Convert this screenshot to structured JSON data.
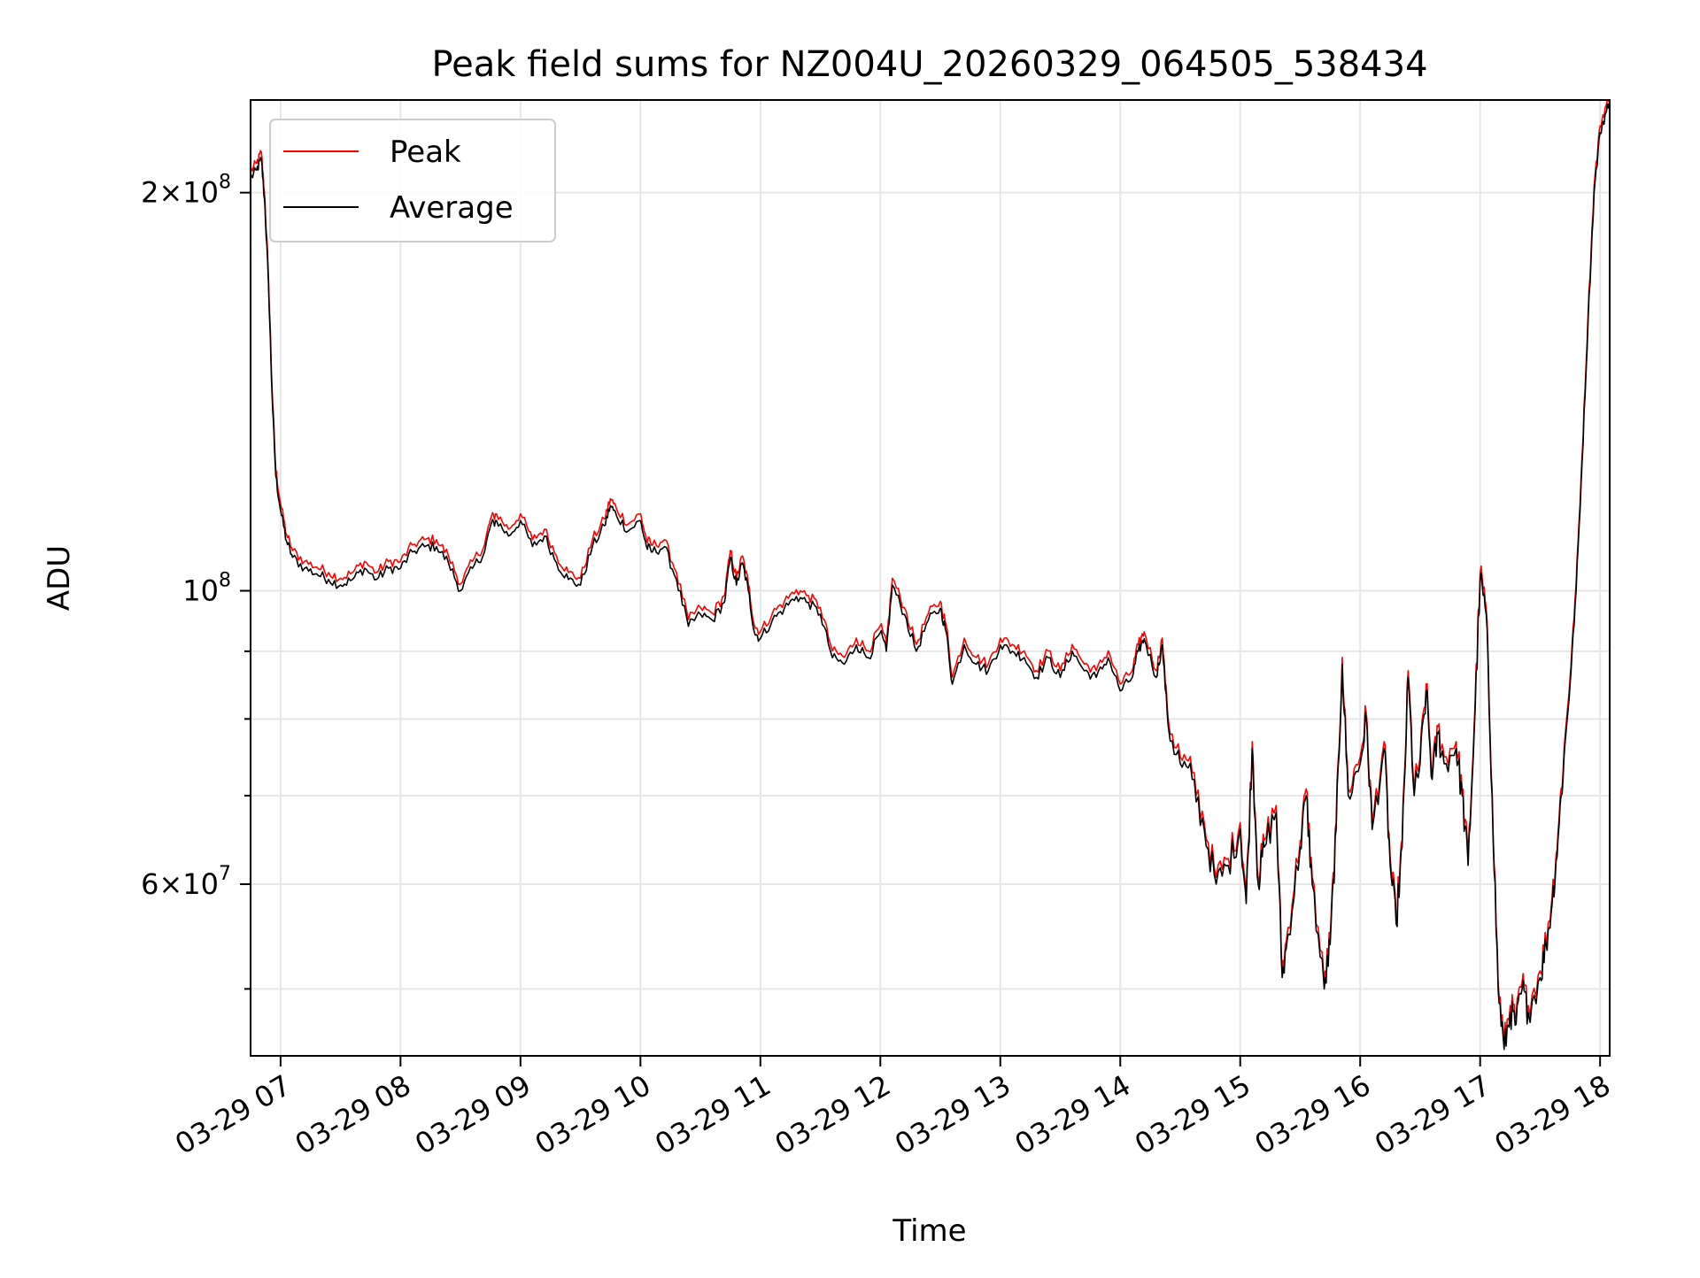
{
  "chart_data": {
    "type": "line",
    "title": "Peak field sums for NZ004U_20260329_064505_538434",
    "xlabel": "Time",
    "ylabel": "ADU",
    "y_scale": "log",
    "ylim": [
      44500000,
      235000000
    ],
    "xlim_hours": [
      6.75,
      18.08
    ],
    "x_tick_hours": [
      7,
      8,
      9,
      10,
      11,
      12,
      13,
      14,
      15,
      16,
      17,
      18
    ],
    "x_tick_labels": [
      "03-29 07",
      "03-29 08",
      "03-29 09",
      "03-29 10",
      "03-29 11",
      "03-29 12",
      "03-29 13",
      "03-29 14",
      "03-29 15",
      "03-29 16",
      "03-29 17",
      "03-29 18"
    ],
    "y_major_ticks": [
      {
        "value": 200000000,
        "mantissa": "2",
        "exponent": "8"
      },
      {
        "value": 100000000,
        "mantissa": "",
        "exponent": "8"
      },
      {
        "value": 60000000,
        "mantissa": "6",
        "exponent": "7"
      }
    ],
    "y_minor_ticks": [
      70000000,
      80000000,
      90000000,
      50000000
    ],
    "grid": true,
    "legend_position": "upper-left",
    "series": [
      {
        "name": "Peak",
        "color": "#ff0000",
        "offset_factor": 1.012
      },
      {
        "name": "Average",
        "color": "#000000",
        "offset_factor": 1.0
      }
    ],
    "keypoints": [
      [
        6.75,
        205000000
      ],
      [
        6.8,
        208000000
      ],
      [
        6.84,
        212000000
      ],
      [
        6.87,
        195000000
      ],
      [
        6.9,
        170000000
      ],
      [
        6.93,
        140000000
      ],
      [
        6.96,
        122000000
      ],
      [
        7.0,
        115000000
      ],
      [
        7.05,
        109000000
      ],
      [
        7.1,
        106000000
      ],
      [
        7.2,
        104000000
      ],
      [
        7.3,
        103000000
      ],
      [
        7.4,
        102000000
      ],
      [
        7.5,
        101000000
      ],
      [
        7.6,
        102000000
      ],
      [
        7.7,
        104000000
      ],
      [
        7.8,
        102000000
      ],
      [
        7.9,
        104000000
      ],
      [
        8.0,
        104000000
      ],
      [
        8.1,
        107000000
      ],
      [
        8.2,
        108000000
      ],
      [
        8.3,
        108000000
      ],
      [
        8.4,
        105000000
      ],
      [
        8.5,
        100000000
      ],
      [
        8.6,
        104000000
      ],
      [
        8.7,
        107000000
      ],
      [
        8.75,
        112000000
      ],
      [
        8.8,
        113000000
      ],
      [
        8.9,
        110000000
      ],
      [
        9.0,
        113000000
      ],
      [
        9.1,
        108000000
      ],
      [
        9.2,
        110000000
      ],
      [
        9.3,
        105000000
      ],
      [
        9.4,
        102000000
      ],
      [
        9.5,
        101000000
      ],
      [
        9.6,
        108000000
      ],
      [
        9.7,
        112000000
      ],
      [
        9.75,
        116000000
      ],
      [
        9.8,
        114000000
      ],
      [
        9.9,
        111000000
      ],
      [
        10.0,
        113000000
      ],
      [
        10.05,
        108000000
      ],
      [
        10.1,
        107000000
      ],
      [
        10.2,
        108000000
      ],
      [
        10.3,
        102000000
      ],
      [
        10.4,
        94000000
      ],
      [
        10.5,
        96000000
      ],
      [
        10.6,
        95000000
      ],
      [
        10.7,
        98000000
      ],
      [
        10.75,
        106000000
      ],
      [
        10.8,
        101000000
      ],
      [
        10.85,
        105000000
      ],
      [
        10.9,
        100000000
      ],
      [
        10.95,
        93000000
      ],
      [
        11.0,
        92000000
      ],
      [
        11.1,
        95000000
      ],
      [
        11.2,
        97000000
      ],
      [
        11.3,
        99000000
      ],
      [
        11.4,
        98000000
      ],
      [
        11.5,
        96000000
      ],
      [
        11.6,
        89000000
      ],
      [
        11.7,
        88000000
      ],
      [
        11.8,
        91000000
      ],
      [
        11.9,
        89000000
      ],
      [
        12.0,
        93000000
      ],
      [
        12.05,
        90000000
      ],
      [
        12.1,
        101000000
      ],
      [
        12.2,
        96000000
      ],
      [
        12.3,
        90000000
      ],
      [
        12.4,
        95000000
      ],
      [
        12.5,
        97000000
      ],
      [
        12.55,
        93000000
      ],
      [
        12.6,
        85000000
      ],
      [
        12.7,
        91000000
      ],
      [
        12.8,
        88000000
      ],
      [
        12.9,
        87000000
      ],
      [
        13.0,
        91000000
      ],
      [
        13.1,
        90000000
      ],
      [
        13.2,
        89000000
      ],
      [
        13.3,
        86000000
      ],
      [
        13.4,
        89000000
      ],
      [
        13.5,
        86000000
      ],
      [
        13.6,
        90000000
      ],
      [
        13.7,
        87000000
      ],
      [
        13.8,
        86000000
      ],
      [
        13.9,
        89000000
      ],
      [
        14.0,
        84000000
      ],
      [
        14.1,
        86000000
      ],
      [
        14.15,
        90000000
      ],
      [
        14.2,
        92000000
      ],
      [
        14.3,
        86000000
      ],
      [
        14.35,
        91000000
      ],
      [
        14.4,
        79000000
      ],
      [
        14.5,
        74000000
      ],
      [
        14.6,
        72000000
      ],
      [
        14.7,
        66000000
      ],
      [
        14.8,
        60000000
      ],
      [
        14.9,
        62000000
      ],
      [
        15.0,
        66000000
      ],
      [
        15.05,
        58000000
      ],
      [
        15.1,
        76000000
      ],
      [
        15.15,
        60000000
      ],
      [
        15.2,
        64000000
      ],
      [
        15.3,
        68000000
      ],
      [
        15.35,
        51000000
      ],
      [
        15.4,
        55000000
      ],
      [
        15.5,
        64000000
      ],
      [
        15.55,
        70000000
      ],
      [
        15.6,
        60000000
      ],
      [
        15.7,
        50000000
      ],
      [
        15.75,
        54000000
      ],
      [
        15.8,
        66000000
      ],
      [
        15.85,
        88000000
      ],
      [
        15.9,
        70000000
      ],
      [
        16.0,
        74000000
      ],
      [
        16.05,
        80000000
      ],
      [
        16.1,
        66000000
      ],
      [
        16.2,
        76000000
      ],
      [
        16.25,
        62000000
      ],
      [
        16.3,
        56000000
      ],
      [
        16.35,
        64000000
      ],
      [
        16.4,
        86000000
      ],
      [
        16.45,
        70000000
      ],
      [
        16.5,
        74000000
      ],
      [
        16.55,
        84000000
      ],
      [
        16.6,
        72000000
      ],
      [
        16.65,
        78000000
      ],
      [
        16.7,
        74000000
      ],
      [
        16.8,
        76000000
      ],
      [
        16.85,
        70000000
      ],
      [
        16.9,
        62000000
      ],
      [
        16.95,
        78000000
      ],
      [
        17.0,
        102000000
      ],
      [
        17.05,
        96000000
      ],
      [
        17.1,
        70000000
      ],
      [
        17.15,
        50000000
      ],
      [
        17.2,
        45000000
      ],
      [
        17.25,
        48000000
      ],
      [
        17.3,
        47000000
      ],
      [
        17.35,
        50000000
      ],
      [
        17.4,
        48000000
      ],
      [
        17.5,
        51000000
      ],
      [
        17.55,
        54000000
      ],
      [
        17.6,
        58000000
      ],
      [
        17.65,
        65000000
      ],
      [
        17.7,
        75000000
      ],
      [
        17.75,
        85000000
      ],
      [
        17.8,
        100000000
      ],
      [
        17.85,
        125000000
      ],
      [
        17.9,
        160000000
      ],
      [
        17.95,
        200000000
      ],
      [
        18.0,
        222000000
      ],
      [
        18.05,
        230000000
      ],
      [
        18.08,
        235000000
      ]
    ]
  }
}
